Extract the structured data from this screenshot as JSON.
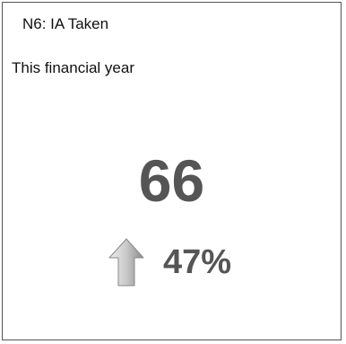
{
  "widget": {
    "title": "N6: IA Taken",
    "subtitle": "This financial year",
    "value": "66",
    "change": {
      "direction": "up",
      "icon": "up-arrow-icon",
      "percent": "47%"
    }
  },
  "colors": {
    "border": "#555555",
    "text": "#111111",
    "value": "#555555",
    "arrow_light": "#d9d9d9",
    "arrow_dark": "#8a8a8a"
  }
}
